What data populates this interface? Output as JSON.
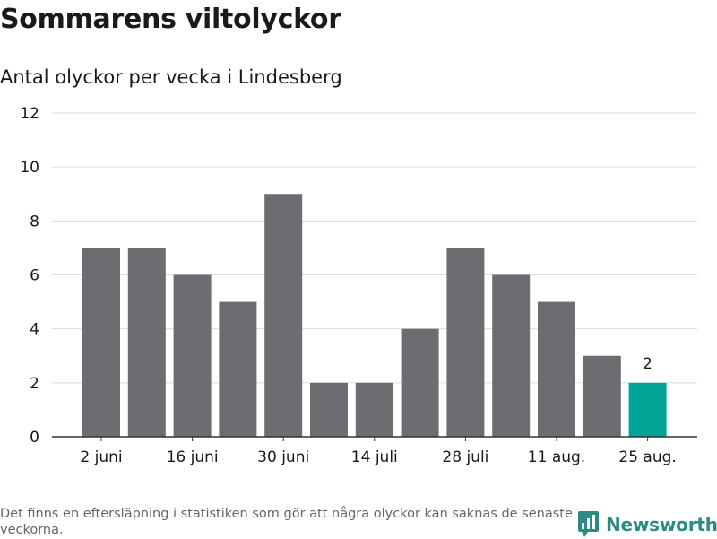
{
  "title": "Sommarens viltolyckor",
  "subtitle": "Antal olyckor per vecka i Lindesberg",
  "footnote": "Det finns en eftersläpning i statistiken som gör att några olyckor kan saknas de senaste veckorna.",
  "brand": {
    "name": "Newsworthy",
    "icon": "newsworthy-logo-icon"
  },
  "colors": {
    "bar": "#6d6c71",
    "highlight": "#00a396",
    "grid": "#dcdcdc",
    "axis": "#333333"
  },
  "chart_data": {
    "type": "bar",
    "values": [
      7,
      7,
      6,
      5,
      9,
      2,
      2,
      4,
      7,
      6,
      5,
      3,
      2
    ],
    "highlight_index": 12,
    "data_labels": [
      {
        "index": 12,
        "text": "2"
      }
    ],
    "x_tick_labels": [
      {
        "index": 0,
        "text": "2 juni"
      },
      {
        "index": 2,
        "text": "16 juni"
      },
      {
        "index": 4,
        "text": "30 juni"
      },
      {
        "index": 6,
        "text": "14 juli"
      },
      {
        "index": 8,
        "text": "28 juli"
      },
      {
        "index": 10,
        "text": "11 aug."
      },
      {
        "index": 12,
        "text": "25 aug."
      }
    ],
    "yticks": [
      0,
      2,
      4,
      6,
      8,
      10,
      12
    ],
    "ylim": [
      0,
      12
    ],
    "grid": true
  }
}
